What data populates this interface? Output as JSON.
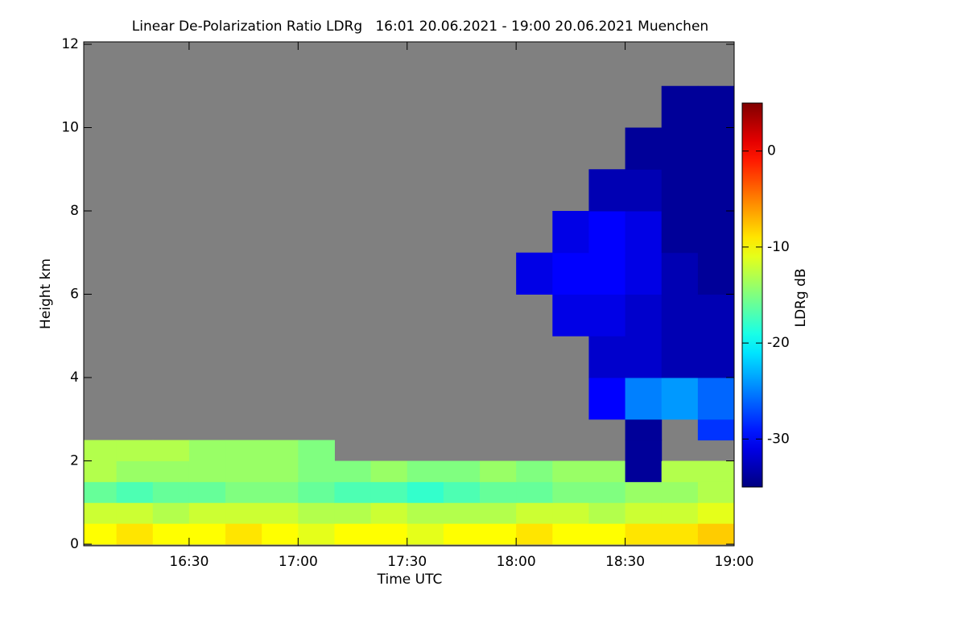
{
  "chart_data": {
    "type": "heatmap",
    "title": "Linear De-Polarization Ratio LDRg   16:01 20.06.2021 - 19:00 20.06.2021 Muenchen",
    "xlabel": "Time UTC",
    "ylabel": "Height km",
    "colorbar_label": "LDRg dB",
    "colormap": "jet",
    "missing_color": "#808080",
    "xlim": [
      961,
      1140
    ],
    "xticks": [
      {
        "value": 990,
        "label": "16:30"
      },
      {
        "value": 1020,
        "label": "17:00"
      },
      {
        "value": 1050,
        "label": "17:30"
      },
      {
        "value": 1080,
        "label": "18:00"
      },
      {
        "value": 1110,
        "label": "18:30"
      },
      {
        "value": 1140,
        "label": "19:00"
      }
    ],
    "ylim": [
      0,
      12
    ],
    "yticks": [
      0,
      2,
      4,
      6,
      8,
      10,
      12
    ],
    "zlim": [
      -35,
      5
    ],
    "zticks": [
      0,
      -10,
      -20,
      -30
    ],
    "xbins": [
      961,
      970,
      980,
      990,
      1000,
      1010,
      1020,
      1030,
      1040,
      1050,
      1060,
      1070,
      1080,
      1090,
      1100,
      1110,
      1120,
      1130,
      1140
    ],
    "ybins": [
      0,
      0.5,
      1,
      1.5,
      2,
      2.5,
      3,
      4,
      5,
      6,
      7,
      8,
      9,
      10,
      11,
      12
    ],
    "z": [
      [
        -10,
        -9,
        -10,
        -10,
        -9,
        -10,
        -11,
        -10,
        -10,
        -11,
        -10,
        -10,
        -9,
        -10,
        -10,
        -9,
        -9,
        -8
      ],
      [
        -12,
        -12,
        -13,
        -12,
        -12,
        -12,
        -13,
        -13,
        -12,
        -13,
        -13,
        -13,
        -12,
        -12,
        -13,
        -12,
        -12,
        -11
      ],
      [
        -16,
        -17,
        -16,
        -16,
        -15,
        -15,
        -16,
        -17,
        -17,
        -18,
        -17,
        -16,
        -16,
        -15,
        -15,
        -14,
        -14,
        -13
      ],
      [
        -13,
        -14,
        -14,
        -14,
        -14,
        -14,
        -15,
        -15,
        -14,
        -15,
        -15,
        -14,
        -15,
        -14,
        -14,
        -34,
        -13,
        -13
      ],
      [
        -13,
        -13,
        -13,
        -14,
        -14,
        -14,
        -15,
        null,
        null,
        null,
        null,
        null,
        null,
        null,
        null,
        -34,
        null,
        null
      ],
      [
        null,
        null,
        null,
        null,
        null,
        null,
        null,
        null,
        null,
        null,
        null,
        null,
        null,
        null,
        null,
        -34,
        null,
        -28
      ],
      [
        null,
        null,
        null,
        null,
        null,
        null,
        null,
        null,
        null,
        null,
        null,
        null,
        null,
        null,
        -30,
        -25,
        -24,
        -26
      ],
      [
        null,
        null,
        null,
        null,
        null,
        null,
        null,
        null,
        null,
        null,
        null,
        null,
        null,
        null,
        -32,
        -32,
        -33,
        -33
      ],
      [
        null,
        null,
        null,
        null,
        null,
        null,
        null,
        null,
        null,
        null,
        null,
        null,
        null,
        -31,
        -31,
        -32,
        -33,
        -33
      ],
      [
        null,
        null,
        null,
        null,
        null,
        null,
        null,
        null,
        null,
        null,
        null,
        null,
        -31,
        -30,
        -30,
        -31,
        -33,
        -34
      ],
      [
        null,
        null,
        null,
        null,
        null,
        null,
        null,
        null,
        null,
        null,
        null,
        null,
        null,
        -31,
        -30,
        -31,
        -34,
        -34
      ],
      [
        null,
        null,
        null,
        null,
        null,
        null,
        null,
        null,
        null,
        null,
        null,
        null,
        null,
        null,
        -33,
        -33,
        -34,
        -34
      ],
      [
        null,
        null,
        null,
        null,
        null,
        null,
        null,
        null,
        null,
        null,
        null,
        null,
        null,
        null,
        null,
        -34,
        -34,
        -34
      ],
      [
        null,
        null,
        null,
        null,
        null,
        null,
        null,
        null,
        null,
        null,
        null,
        null,
        null,
        null,
        null,
        null,
        -34,
        -34
      ],
      [
        null,
        null,
        null,
        null,
        null,
        null,
        null,
        null,
        null,
        null,
        null,
        null,
        null,
        null,
        null,
        null,
        null,
        null
      ]
    ]
  }
}
